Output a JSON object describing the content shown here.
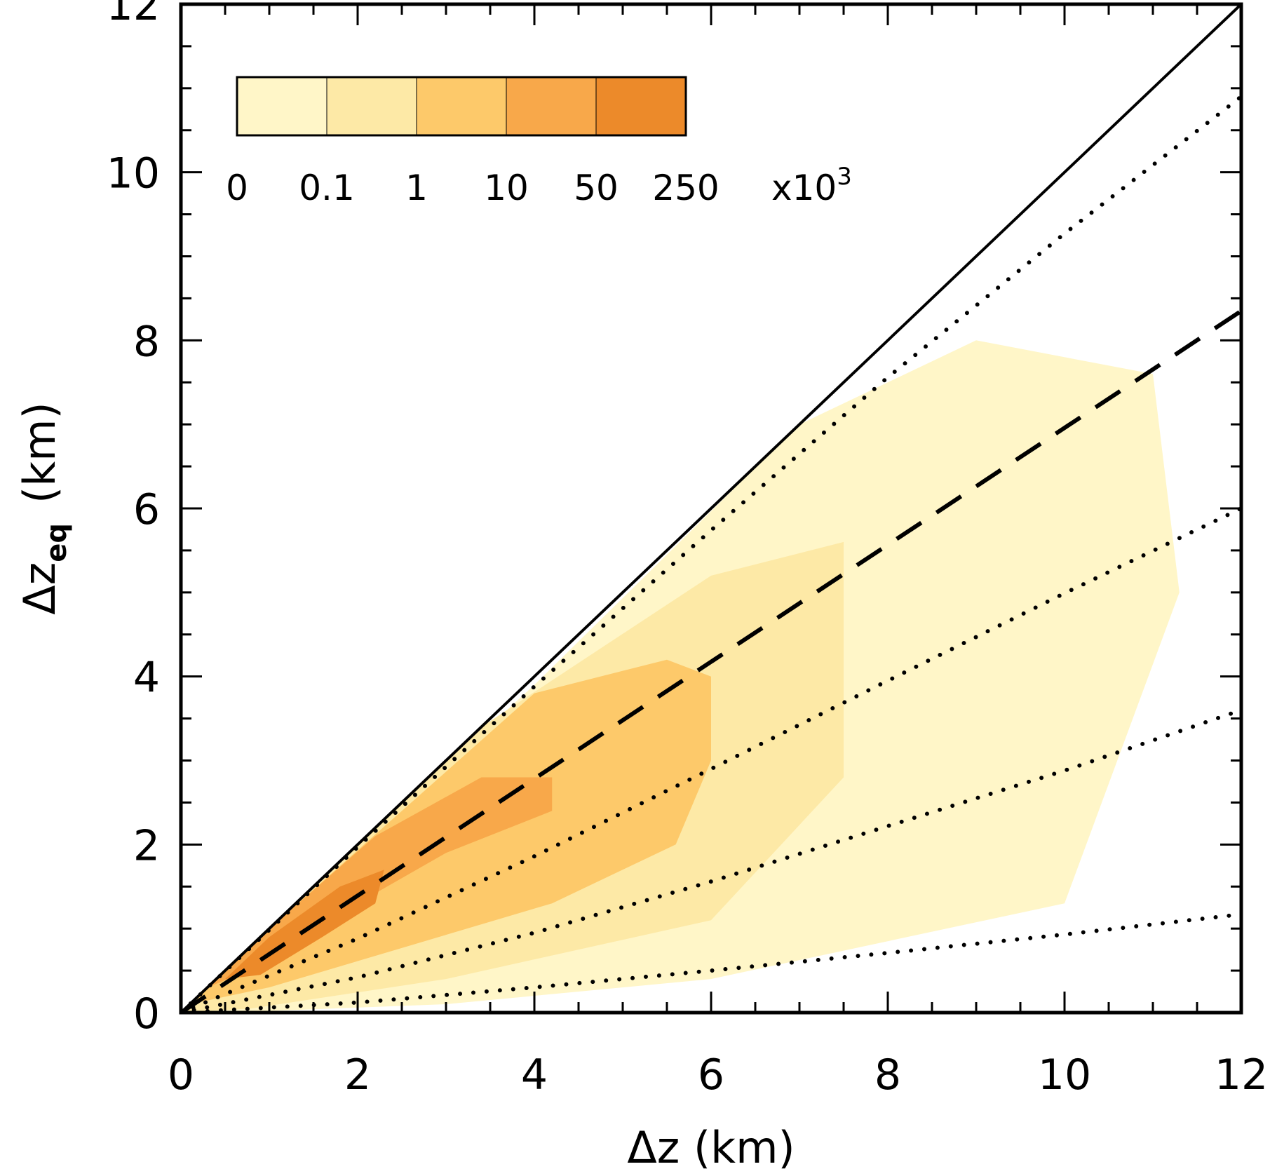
{
  "chart_data": {
    "type": "heatmap",
    "title": "",
    "xlabel": "Δz  (km)",
    "ylabel_main": "Δz",
    "ylabel_sub": "eq",
    "ylabel_unit": "(km)",
    "xlim": [
      0,
      12
    ],
    "ylim": [
      0,
      12
    ],
    "x_ticks": [
      "0",
      "2",
      "4",
      "6",
      "8",
      "10",
      "12"
    ],
    "y_ticks": [
      "0",
      "2",
      "4",
      "6",
      "8",
      "10",
      "12"
    ],
    "colorbar": {
      "placement": "top-left",
      "labels": [
        "0",
        "0.1",
        "1",
        "10",
        "50",
        "250"
      ],
      "multiplier": "x10",
      "multiplier_exp": "3",
      "colors": [
        "#fff6c8",
        "#fde9a6",
        "#fdc96a",
        "#f8a84a",
        "#ec8a2a"
      ]
    },
    "density_regions": [
      {
        "level": 1,
        "x": [
          0,
          1.3,
          4.0,
          7.0,
          9.0,
          11.0,
          11.3,
          10.0,
          6.0,
          3.0,
          0.5
        ],
        "y": [
          0,
          1.3,
          3.9,
          7.0,
          8.0,
          7.6,
          5.0,
          1.3,
          0.4,
          0.1,
          0.0
        ]
      },
      {
        "level": 2,
        "x": [
          0,
          1.2,
          3.4,
          6.0,
          7.5,
          7.5,
          6.0,
          3.0,
          0.8
        ],
        "y": [
          0,
          1.2,
          3.4,
          5.2,
          5.6,
          2.8,
          1.1,
          0.4,
          0.05
        ]
      },
      {
        "level": 3,
        "x": [
          0.1,
          1.0,
          2.5,
          4.0,
          5.5,
          6.0,
          6.0,
          5.6,
          4.2,
          2.6,
          1.0
        ],
        "y": [
          0.1,
          1.0,
          2.4,
          3.8,
          4.2,
          4.0,
          3.0,
          2.0,
          1.3,
          0.8,
          0.3
        ]
      },
      {
        "level": 4,
        "x": [
          0.3,
          1.0,
          2.2,
          3.4,
          4.2,
          4.2,
          3.0,
          2.0,
          1.0
        ],
        "y": [
          0.3,
          1.0,
          2.1,
          2.8,
          2.8,
          2.4,
          1.9,
          1.3,
          0.6
        ]
      },
      {
        "level": 5,
        "x": [
          0.5,
          1.0,
          1.8,
          2.3,
          2.2,
          1.6,
          0.9
        ],
        "y": [
          0.4,
          0.9,
          1.5,
          1.7,
          1.3,
          0.9,
          0.45
        ]
      }
    ],
    "lines": [
      {
        "style": "solid",
        "x": [
          0,
          12
        ],
        "y": [
          0,
          12
        ]
      },
      {
        "style": "dashed",
        "x": [
          0,
          12
        ],
        "y": [
          0,
          8.35
        ]
      },
      {
        "style": "dotted",
        "x": [
          0,
          2,
          4,
          6,
          8,
          10,
          12
        ],
        "y": [
          0,
          1.97,
          3.88,
          5.74,
          7.56,
          9.27,
          10.9
        ]
      },
      {
        "style": "dotted",
        "x": [
          0,
          2,
          4,
          6,
          8,
          10,
          12
        ],
        "y": [
          0,
          0.88,
          1.86,
          2.9,
          3.95,
          4.99,
          6.0
        ]
      },
      {
        "style": "dotted",
        "x": [
          0,
          2,
          4,
          6,
          8,
          10,
          12
        ],
        "y": [
          0,
          0.42,
          0.95,
          1.56,
          2.22,
          2.88,
          3.6
        ]
      },
      {
        "style": "dotted",
        "x": [
          0,
          2,
          4,
          6,
          8,
          10,
          12
        ],
        "y": [
          0,
          0.12,
          0.3,
          0.5,
          0.71,
          0.93,
          1.17
        ]
      }
    ]
  }
}
